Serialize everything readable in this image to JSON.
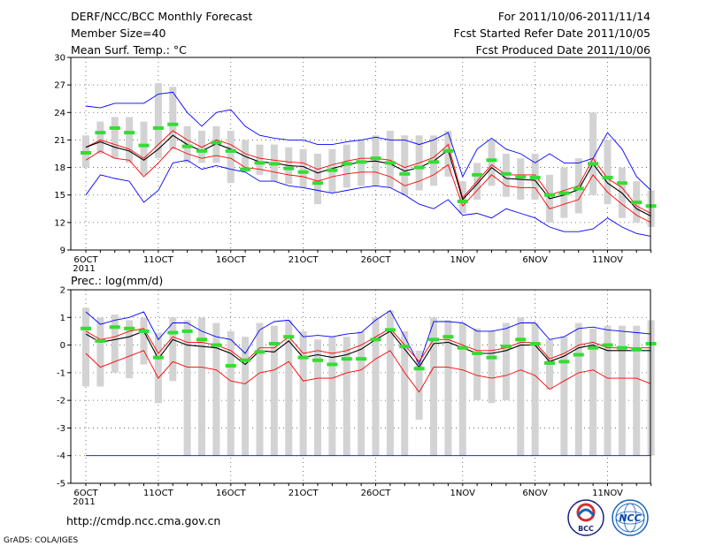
{
  "header": {
    "title_line1": "DERF/NCC/BCC Monthly Forecast",
    "title_line2": "Member Size=40",
    "title_line3": "Mean Surf. Temp.: °C",
    "right_line1": "For 2011/10/06-2011/11/14",
    "right_line2": "Fcst Started Refer Date 2011/10/05",
    "right_line3": "Fcst Produced Date 2011/10/06"
  },
  "footer": {
    "url": "http://cmdp.ncc.cma.gov.cn",
    "credit": "GrADS: COLA/IGES",
    "logo_left_text": "BCC",
    "logo_right_text": "NCC"
  },
  "colors": {
    "envelope": "#0000ff",
    "spread": "#ff0000",
    "mean": "#000000",
    "box": "#d3d3d3",
    "median": "#33dd33",
    "grid": "#555555"
  },
  "chart_data": [
    {
      "type": "line",
      "title": "Mean Surf. Temp.: °C",
      "x_count": 40,
      "x_ticks": [
        "6OCT\n2011",
        "11OCT",
        "16OCT",
        "21OCT",
        "26OCT",
        "1NOV",
        "6NOV",
        "11NOV"
      ],
      "x_tick_index": [
        0,
        5,
        10,
        15,
        20,
        26,
        31,
        36
      ],
      "ylim": [
        9,
        30
      ],
      "y_ticks": [
        9,
        12,
        15,
        18,
        21,
        24,
        27,
        30
      ],
      "series": [
        {
          "name": "max",
          "values": [
            15,
            17.2,
            16.8,
            16.5,
            14.2,
            15.5,
            18.5,
            18.8,
            17.8,
            18.2,
            17.8,
            17.5,
            16.5,
            16.5,
            16,
            15.8,
            15.5,
            15.2,
            15.5,
            15.8,
            16,
            15.8,
            15,
            14,
            13.5,
            14.5,
            12.8,
            13,
            12.5,
            13.5,
            13,
            12.5,
            11.5,
            11,
            11,
            11.3,
            12.5,
            11.5,
            10.8,
            10.5
          ]
        },
        {
          "name": "upper",
          "values": [
            24.7,
            24.5,
            25,
            25,
            25,
            26,
            26.2,
            24,
            22.5,
            24,
            24.3,
            22.5,
            21.5,
            21.2,
            21,
            21,
            20.5,
            20.5,
            20.8,
            21,
            21.3,
            21,
            21,
            20.5,
            21,
            21.8,
            17,
            20,
            21.2,
            20,
            19.5,
            18.5,
            19.5,
            18.5,
            18.5,
            19,
            21.8,
            20,
            17,
            15.5
          ]
        },
        {
          "name": "p75",
          "values": [
            20.2,
            21,
            20.5,
            20,
            19,
            20.5,
            22,
            21,
            20.2,
            21,
            20.5,
            19.5,
            19,
            18.8,
            18.6,
            18.5,
            17.8,
            18.3,
            18.7,
            19,
            19,
            18.8,
            18,
            18.5,
            19.1,
            20.5,
            14.7,
            16.5,
            18.3,
            17.2,
            17.2,
            17.2,
            15,
            15.5,
            16,
            19,
            16.8,
            15.8,
            13.8,
            13
          ]
        },
        {
          "name": "mean",
          "values": [
            20.2,
            20.8,
            20.2,
            19.8,
            18.8,
            20,
            21.5,
            20.5,
            19.8,
            20.6,
            20,
            19.2,
            18.6,
            18.5,
            18.2,
            18.1,
            17.4,
            17.9,
            18.3,
            18.6,
            18.7,
            18.4,
            17.6,
            18,
            18.7,
            19.9,
            14.5,
            16.2,
            18,
            16.8,
            16.7,
            16.6,
            14.6,
            15,
            15.6,
            18.4,
            16.3,
            15.2,
            13.5,
            12.7
          ]
        },
        {
          "name": "p25",
          "values": [
            18.8,
            19.8,
            19,
            18.8,
            17,
            18.5,
            20.2,
            19.5,
            19,
            19.3,
            19,
            18,
            17.8,
            17.5,
            17.2,
            17,
            16.5,
            17,
            17.3,
            17.5,
            17.5,
            17,
            16,
            16.5,
            17.2,
            18.3,
            13.8,
            15.5,
            17.2,
            16,
            15.8,
            15.8,
            13.5,
            14,
            14.5,
            17.2,
            15.3,
            14,
            12.8,
            12
          ]
        },
        {
          "name": "median",
          "values": [
            19.6,
            21.8,
            22.3,
            21.8,
            20.4,
            22.3,
            22.7,
            20.3,
            19.8,
            20.7,
            19.8,
            17.8,
            18.5,
            18.4,
            17.9,
            17.5,
            16.3,
            17.7,
            18.4,
            18.6,
            19,
            18.5,
            17.3,
            18,
            18.6,
            19.8,
            14.3,
            17.2,
            18.8,
            17.3,
            17,
            16.9,
            15,
            15.2,
            15.7,
            18.4,
            16.9,
            16.3,
            14.2,
            13.8
          ]
        }
      ],
      "boxes": [
        [
          18,
          21.5
        ],
        [
          19.5,
          23
        ],
        [
          19,
          23.5
        ],
        [
          18.5,
          23.5
        ],
        [
          17.2,
          23
        ],
        [
          19,
          27.2
        ],
        [
          20,
          26.8
        ],
        [
          18.5,
          22.5
        ],
        [
          18.5,
          22
        ],
        [
          18.5,
          22.5
        ],
        [
          16.3,
          22
        ],
        [
          17.5,
          21
        ],
        [
          17.2,
          20.5
        ],
        [
          16.5,
          20.5
        ],
        [
          16.2,
          20.2
        ],
        [
          15.8,
          20
        ],
        [
          14,
          19.5
        ],
        [
          15.2,
          20
        ],
        [
          15.8,
          20.5
        ],
        [
          16,
          21
        ],
        [
          16,
          21.5
        ],
        [
          15.8,
          22
        ],
        [
          15,
          21.5
        ],
        [
          15.5,
          21.5
        ],
        [
          16,
          21.5
        ],
        [
          17,
          22
        ],
        [
          13,
          16.5
        ],
        [
          14.5,
          18.5
        ],
        [
          16,
          21
        ],
        [
          14.8,
          19.5
        ],
        [
          14.5,
          19
        ],
        [
          14.5,
          19.5
        ],
        [
          12,
          17.2
        ],
        [
          12.5,
          18
        ],
        [
          13,
          19
        ],
        [
          15,
          24
        ],
        [
          14,
          21
        ],
        [
          12.5,
          18
        ],
        [
          12,
          16.5
        ],
        [
          11.5,
          15.5
        ]
      ]
    },
    {
      "type": "line",
      "title": "Prec.: log(mm/d)",
      "x_count": 40,
      "x_ticks": [
        "6OCT\n2011",
        "11OCT",
        "16OCT",
        "21OCT",
        "26OCT",
        "1NOV",
        "6NOV",
        "11NOV"
      ],
      "x_tick_index": [
        0,
        5,
        10,
        15,
        20,
        26,
        31,
        36
      ],
      "ylim": [
        -5,
        2
      ],
      "y_ticks": [
        -5,
        -4,
        -3,
        -2,
        -1,
        0,
        1,
        2
      ],
      "series": [
        {
          "name": "min",
          "values": [
            -4,
            -4,
            -4,
            -4,
            -4,
            -4,
            -4,
            -4,
            -4,
            -4,
            -4,
            -4,
            -4,
            -4,
            -4,
            -4,
            -4,
            -4,
            -4,
            -4,
            -4,
            -4,
            -4,
            -4,
            -4,
            -4,
            -4,
            -4,
            -4,
            -4,
            -4,
            -4,
            -4,
            -4,
            -4,
            -4,
            -4,
            -4,
            -4,
            -4
          ]
        },
        {
          "name": "max",
          "values": [
            1.2,
            0.75,
            0.9,
            1,
            1.2,
            0.2,
            0.8,
            0.8,
            0.5,
            0.3,
            0.2,
            -0.3,
            0.55,
            0.85,
            0.9,
            0.3,
            0.35,
            0.3,
            0.4,
            0.45,
            0.9,
            1.25,
            0.3,
            -0.7,
            0.85,
            0.85,
            0.8,
            0.5,
            0.5,
            0.6,
            0.8,
            0.8,
            0.2,
            0.3,
            0.6,
            0.65,
            0.55,
            0.5,
            0.45,
            0.4
          ]
        },
        {
          "name": "p75",
          "values": [
            0.5,
            0.2,
            0.3,
            0.5,
            0.6,
            -0.3,
            0.3,
            0.1,
            0.1,
            0,
            -0.2,
            -0.6,
            -0.1,
            -0.1,
            0.3,
            -0.3,
            -0.2,
            -0.3,
            -0.2,
            0,
            0.3,
            0.6,
            0,
            -0.6,
            0.2,
            0.2,
            0,
            -0.2,
            -0.2,
            -0.1,
            0.1,
            0.1,
            -0.5,
            -0.3,
            0,
            0.1,
            -0.1,
            -0.1,
            -0.1,
            -0.1
          ]
        },
        {
          "name": "mean",
          "values": [
            0.4,
            0.1,
            0.2,
            0.3,
            0.5,
            -0.5,
            0.2,
            0,
            -0.05,
            -0.1,
            -0.3,
            -0.7,
            -0.2,
            -0.25,
            0.15,
            -0.45,
            -0.35,
            -0.45,
            -0.35,
            -0.15,
            0.2,
            0.5,
            -0.15,
            -0.8,
            0.05,
            0.1,
            -0.1,
            -0.3,
            -0.3,
            -0.2,
            0,
            0,
            -0.6,
            -0.4,
            -0.1,
            0,
            -0.2,
            -0.2,
            -0.2,
            -0.2
          ]
        },
        {
          "name": "p25",
          "values": [
            -0.3,
            -0.8,
            -0.6,
            -0.4,
            -0.2,
            -1.2,
            -0.6,
            -0.8,
            -0.8,
            -0.9,
            -1.3,
            -1.4,
            -1,
            -0.9,
            -0.6,
            -1.3,
            -1.2,
            -1.2,
            -1,
            -0.9,
            -0.5,
            -0.2,
            -1,
            -1.7,
            -0.8,
            -0.8,
            -0.9,
            -1.1,
            -1.2,
            -1.1,
            -0.9,
            -1.1,
            -1.6,
            -1.3,
            -1,
            -0.9,
            -1.2,
            -1.2,
            -1.2,
            -1.4
          ]
        },
        {
          "name": "median",
          "values": [
            0.6,
            0.15,
            0.65,
            0.6,
            0.5,
            -0.45,
            0.45,
            0.5,
            0.2,
            0,
            -0.75,
            -0.55,
            -0.25,
            0.05,
            0.3,
            -0.45,
            -0.55,
            -0.7,
            -0.5,
            -0.5,
            0.2,
            0.55,
            -0.05,
            -0.85,
            0.2,
            0.3,
            -0.1,
            -0.3,
            -0.45,
            -0.05,
            0.2,
            0.05,
            -0.65,
            -0.6,
            -0.35,
            -0.1,
            0,
            -0.1,
            -0.15,
            0.05
          ]
        }
      ],
      "boxes": [
        [
          -1.5,
          1.35
        ],
        [
          -1.5,
          1
        ],
        [
          -1,
          1.1
        ],
        [
          -1.2,
          0.9
        ],
        [
          -0.7,
          1
        ],
        [
          -2.1,
          0.45
        ],
        [
          -1.3,
          1
        ],
        [
          -4,
          0.9
        ],
        [
          -4,
          1
        ],
        [
          -4,
          0.8
        ],
        [
          -4,
          0.5
        ],
        [
          -4,
          0.3
        ],
        [
          -4,
          0.8
        ],
        [
          -4,
          0.7
        ],
        [
          -4,
          0.9
        ],
        [
          -4,
          0.5
        ],
        [
          -4,
          0.2
        ],
        [
          -4,
          0.3
        ],
        [
          -4,
          0.3
        ],
        [
          -4,
          0.5
        ],
        [
          -4,
          1
        ],
        [
          -4,
          1.25
        ],
        [
          -4,
          0.5
        ],
        [
          -2.7,
          -0.2
        ],
        [
          -4,
          1
        ],
        [
          -4,
          0.9
        ],
        [
          -4,
          0.8
        ],
        [
          -2,
          0.6
        ],
        [
          -2.1,
          0.5
        ],
        [
          -2,
          0.8
        ],
        [
          -4,
          1
        ],
        [
          -4,
          0.8
        ],
        [
          -1.6,
          0.2
        ],
        [
          -4,
          0.3
        ],
        [
          -4,
          0.8
        ],
        [
          -4,
          0.6
        ],
        [
          -4,
          0.7
        ],
        [
          -4,
          0.7
        ],
        [
          -4,
          0.7
        ],
        [
          -4,
          0.9
        ]
      ]
    }
  ]
}
